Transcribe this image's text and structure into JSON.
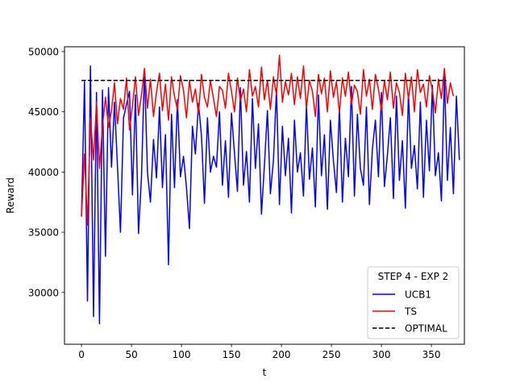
{
  "chart_data": {
    "type": "line",
    "title": "",
    "xlabel": "t",
    "ylabel": "Reward",
    "xlim": [
      -17,
      383
    ],
    "ylim": [
      25700,
      50400
    ],
    "xticks": [
      0,
      50,
      100,
      150,
      200,
      250,
      300,
      350
    ],
    "xtick_labels": [
      "0",
      "50",
      "100",
      "150",
      "200",
      "250",
      "300",
      "350"
    ],
    "yticks": [
      30000,
      35000,
      40000,
      45000,
      50000
    ],
    "ytick_labels": [
      "30000",
      "35000",
      "40000",
      "45000",
      "50000"
    ],
    "grid": false,
    "legend": {
      "title": "STEP 4 - EXP 2",
      "placement": "lower-right",
      "entries": [
        {
          "label": "UCB1",
          "color": "#0000ff",
          "style": "solid"
        },
        {
          "label": "TS",
          "color": "#ff0000",
          "style": "solid"
        },
        {
          "label": "OPTIMAL",
          "color": "#000000",
          "style": "dashed"
        }
      ]
    },
    "series": [
      {
        "name": "UCB1",
        "color": "#0000ff",
        "style": "solid",
        "x_start": 0,
        "x_step": 3,
        "values": [
          36300,
          47500,
          29300,
          48800,
          28000,
          46600,
          27400,
          46800,
          33000,
          47000,
          40400,
          45800,
          40500,
          35000,
          44500,
          45600,
          46700,
          38100,
          46400,
          34900,
          39600,
          48500,
          40000,
          37500,
          42700,
          39500,
          45400,
          38700,
          43100,
          32300,
          44800,
          38700,
          46000,
          39600,
          41300,
          38700,
          35300,
          43800,
          41500,
          45700,
          43000,
          37400,
          44500,
          40000,
          41300,
          40400,
          45000,
          38900,
          42600,
          37900,
          44900,
          41600,
          38400,
          47000,
          38900,
          41700,
          37500,
          46100,
          40300,
          44000,
          36500,
          40600,
          45100,
          38200,
          41000,
          46900,
          37300,
          43800,
          39700,
          42800,
          36600,
          44300,
          40000,
          41600,
          38000,
          45600,
          39400,
          42000,
          37100,
          46400,
          39700,
          43100,
          36900,
          44300,
          40900,
          38300,
          45400,
          37500,
          42800,
          39600,
          47100,
          38000,
          44800,
          40300,
          38900,
          45400,
          37300,
          41900,
          44300,
          39600,
          46600,
          38800,
          41400,
          44500,
          37800,
          46300,
          39300,
          42600,
          37000,
          46500,
          40300,
          42200,
          38600,
          45800,
          37900,
          44300,
          40100,
          47200,
          39700,
          41600,
          37600,
          48000,
          39300,
          43700,
          38200,
          46300,
          41000
        ]
      },
      {
        "name": "TS",
        "color": "#ff0000",
        "style": "solid",
        "x_start": 0,
        "x_step": 3,
        "values": [
          36300,
          41500,
          35600,
          44500,
          41000,
          45800,
          40300,
          43800,
          46200,
          43700,
          45100,
          47400,
          44000,
          46100,
          45200,
          47800,
          43500,
          45500,
          47900,
          44700,
          46400,
          48600,
          45300,
          47700,
          44600,
          46600,
          48200,
          45100,
          47300,
          44300,
          47900,
          46300,
          45200,
          48000,
          46800,
          44500,
          47600,
          45800,
          46900,
          44800,
          48100,
          46200,
          45400,
          47600,
          46100,
          44600,
          47100,
          46800,
          45300,
          48200,
          46700,
          45000,
          47800,
          45900,
          46900,
          45000,
          48500,
          46300,
          47100,
          45400,
          48700,
          46000,
          47600,
          45200,
          47900,
          46400,
          49700,
          45800,
          47500,
          46400,
          48200,
          45600,
          47900,
          46100,
          48800,
          45300,
          47600,
          46700,
          44600,
          48100,
          46500,
          47800,
          45000,
          48400,
          46200,
          47500,
          44900,
          47800,
          46300,
          48300,
          45600,
          47200,
          46700,
          44800,
          48500,
          46300,
          47700,
          45200,
          48100,
          46900,
          45100,
          47600,
          46000,
          48300,
          45300,
          47400,
          46600,
          44700,
          48200,
          46100,
          47900,
          45000,
          48500,
          46600,
          47300,
          45400,
          48000,
          46800,
          44900,
          47700,
          46100,
          48600,
          45700,
          47400,
          46300
        ]
      },
      {
        "name": "OPTIMAL",
        "color": "#000000",
        "style": "dashed",
        "x": [
          0,
          365
        ],
        "values": [
          47600,
          47600
        ]
      }
    ]
  }
}
